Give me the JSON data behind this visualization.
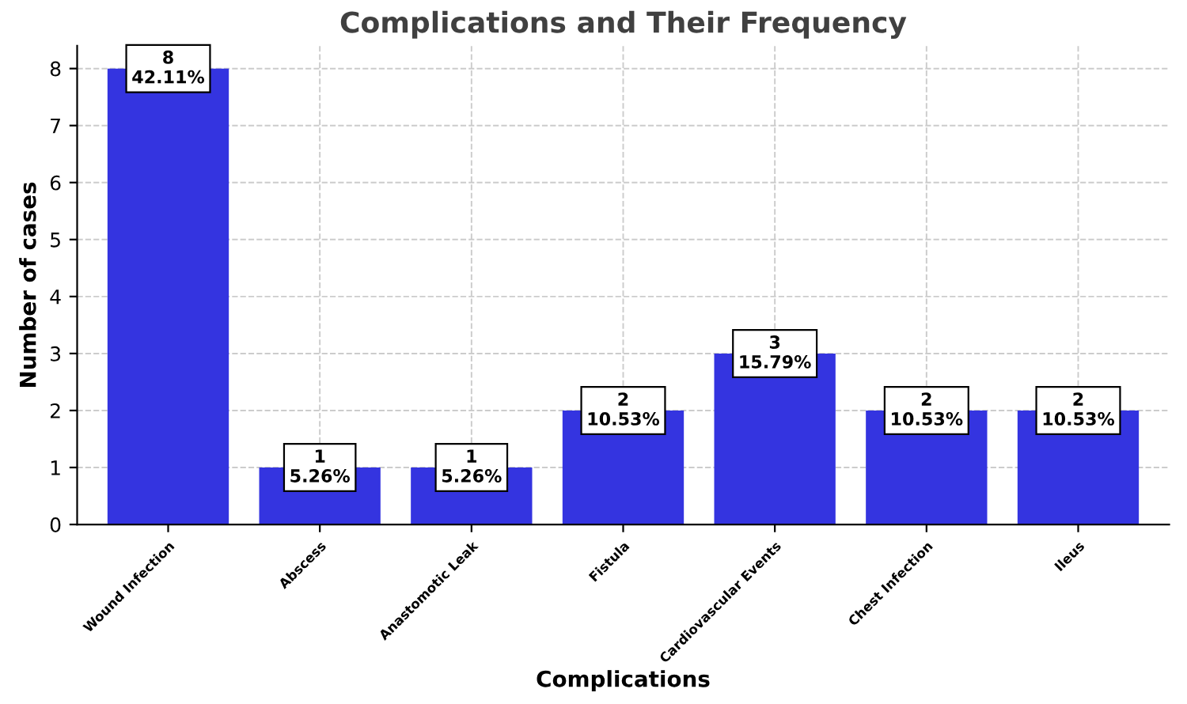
{
  "chart_data": {
    "type": "bar",
    "title": "Complications and Their Frequency",
    "xlabel": "Complications",
    "ylabel": "Number of cases",
    "categories": [
      "Wound Infection",
      "Abscess",
      "Anastomotic Leak",
      "Fistula",
      "Cardiovascular Events",
      "Chest Infection",
      "Ileus"
    ],
    "values": [
      8,
      1,
      1,
      2,
      3,
      2,
      2
    ],
    "value_labels": [
      "8\n42.11%",
      "1\n5.26%",
      "1\n5.26%",
      "2\n10.53%",
      "3\n15.79%",
      "2\n10.53%",
      "2\n10.53%"
    ],
    "color": "#3434e0",
    "ylim": [
      0,
      8.4
    ],
    "yticks": [
      0,
      1,
      2,
      3,
      4,
      5,
      6,
      7,
      8
    ],
    "grid": true
  }
}
